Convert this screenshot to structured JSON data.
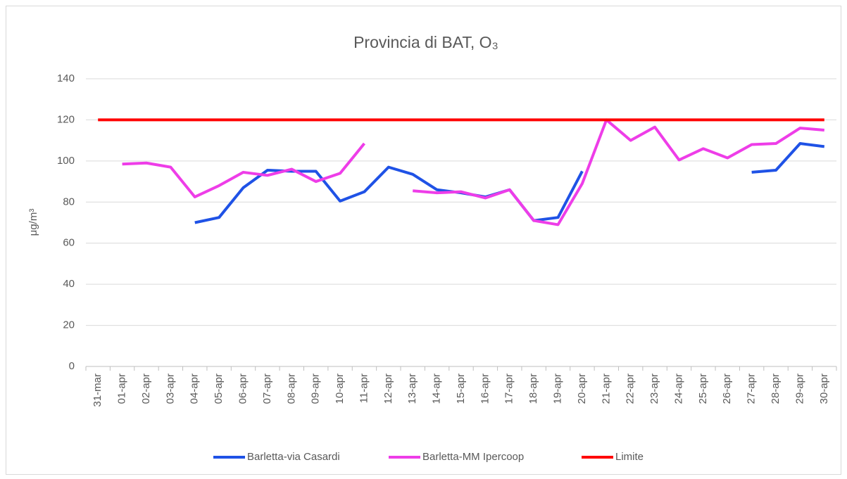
{
  "chart_data": {
    "type": "line",
    "title": "Provincia di BAT, O₃",
    "y_label": "μg/m³",
    "categories": [
      "31-mar",
      "01-apr",
      "02-apr",
      "03-apr",
      "04-apr",
      "05-apr",
      "06-apr",
      "07-apr",
      "08-apr",
      "09-apr",
      "10-apr",
      "11-apr",
      "12-apr",
      "13-apr",
      "14-apr",
      "15-apr",
      "16-apr",
      "17-apr",
      "18-apr",
      "19-apr",
      "20-apr",
      "21-apr",
      "22-apr",
      "23-apr",
      "24-apr",
      "25-apr",
      "26-apr",
      "27-apr",
      "28-apr",
      "29-apr",
      "30-apr"
    ],
    "series": [
      {
        "name": "Barletta-via Casardi",
        "color": "#1f52e6",
        "values": [
          null,
          null,
          null,
          null,
          70,
          72.5,
          87,
          95.5,
          95,
          95,
          80.5,
          85,
          97,
          93.5,
          86,
          84.5,
          82.5,
          86,
          71,
          72.5,
          95,
          null,
          null,
          null,
          null,
          null,
          null,
          94.5,
          95.5,
          108.5,
          107
        ]
      },
      {
        "name": "Barletta-MM Ipercoop",
        "color": "#ee3de8",
        "values": [
          null,
          98.5,
          99,
          97,
          82.5,
          88,
          94.5,
          93,
          96,
          90,
          94,
          108.5,
          null,
          85.5,
          84.5,
          85,
          82,
          86,
          71,
          69,
          89,
          120,
          110,
          116.5,
          100.5,
          106,
          101.5,
          108,
          108.5,
          116,
          115
        ]
      },
      {
        "name": "Limite",
        "color": "#ff0000",
        "values": [
          120,
          120,
          120,
          120,
          120,
          120,
          120,
          120,
          120,
          120,
          120,
          120,
          120,
          120,
          120,
          120,
          120,
          120,
          120,
          120,
          120,
          120,
          120,
          120,
          120,
          120,
          120,
          120,
          120,
          120,
          120
        ]
      }
    ],
    "ylim": [
      0,
      140
    ],
    "yticks": [
      0,
      20,
      40,
      60,
      80,
      100,
      120,
      140
    ],
    "grid": true,
    "legend": "bottom"
  }
}
